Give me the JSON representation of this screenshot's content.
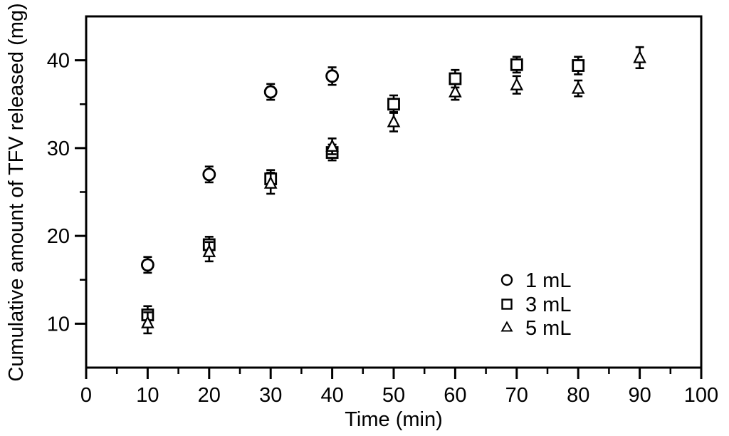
{
  "figure": {
    "background": "#ffffff",
    "line_color": "#000000",
    "marker_fill": "#ffffff"
  },
  "chart_data": {
    "type": "scatter",
    "title": "",
    "xlabel": "Time (min)",
    "ylabel": "Cumulative amount of TFV released (mg)",
    "xlim": [
      0,
      100
    ],
    "ylim": [
      5,
      45
    ],
    "x_major_ticks": [
      0,
      10,
      20,
      30,
      40,
      50,
      60,
      70,
      80,
      90,
      100
    ],
    "x_minor_ticks": [
      5,
      15,
      25,
      35,
      45,
      55,
      65,
      75,
      85,
      95
    ],
    "y_major_ticks": [
      10,
      20,
      30,
      40
    ],
    "y_minor_ticks": [
      15,
      25,
      35
    ],
    "grid": false,
    "error_bars": "vertical, capped, approx +/-1 mg",
    "legend_position": "inside-lower-right",
    "series": [
      {
        "name": "1 mL",
        "marker": "circle",
        "x": [
          10,
          20,
          30,
          40
        ],
        "y": [
          16.7,
          27.0,
          36.4,
          38.2
        ],
        "yerr": [
          0.9,
          0.9,
          0.9,
          1.0
        ]
      },
      {
        "name": "3 mL",
        "marker": "square",
        "x": [
          10,
          20,
          30,
          40,
          50,
          60,
          70,
          80
        ],
        "y": [
          11.0,
          19.0,
          26.5,
          29.5,
          35.0,
          37.9,
          39.5,
          39.4
        ],
        "yerr": [
          1.0,
          0.9,
          1.0,
          0.9,
          1.0,
          1.0,
          0.9,
          1.0
        ]
      },
      {
        "name": "5 mL",
        "marker": "triangle",
        "x": [
          10,
          20,
          30,
          40,
          50,
          60,
          70,
          80,
          90
        ],
        "y": [
          10.1,
          18.2,
          26.0,
          30.2,
          33.0,
          36.4,
          37.2,
          36.8,
          40.3
        ],
        "yerr": [
          1.2,
          1.1,
          1.2,
          0.9,
          1.1,
          0.9,
          1.0,
          0.9,
          1.2
        ]
      }
    ]
  }
}
